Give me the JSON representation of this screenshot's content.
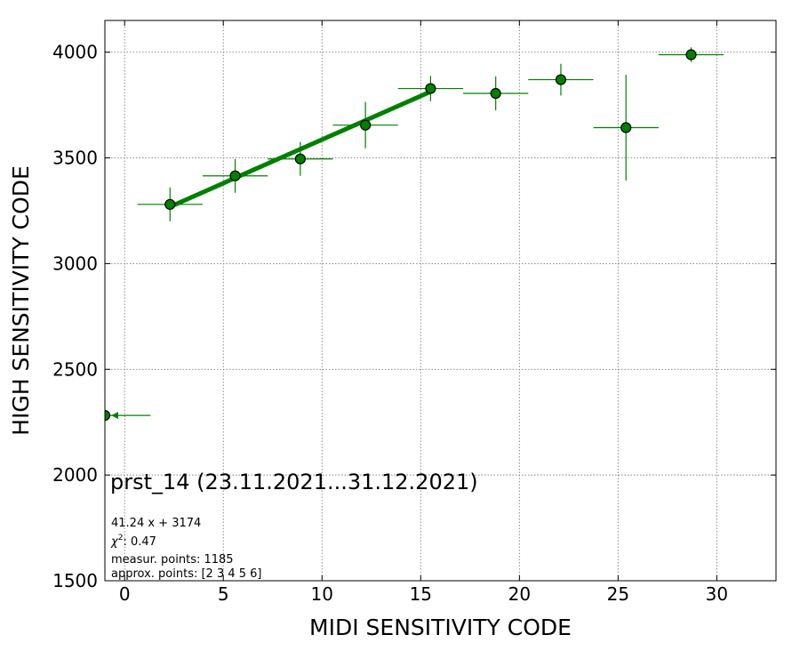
{
  "chart_data": {
    "type": "scatter",
    "xlabel": "MIDI SENSITIVITY CODE",
    "ylabel": "HIGH SENSITIVITY CODE",
    "xlim": [
      -1,
      33
    ],
    "ylim": [
      1500,
      4150
    ],
    "x_ticks": [
      0,
      5,
      10,
      15,
      20,
      25,
      30
    ],
    "y_ticks": [
      1500,
      2000,
      2500,
      3000,
      3500,
      4000
    ],
    "grid": true,
    "colors": {
      "marker": "#008000",
      "marker_edge": "#000000",
      "fit_line": "#008000",
      "grid": "#808080"
    },
    "points": [
      {
        "x": -1.0,
        "y": 2282,
        "xerr": 0.7,
        "yerr": 0,
        "arrow": "left"
      },
      {
        "x": 2.3,
        "y": 3280,
        "xerr": 1.65,
        "yerr": 80
      },
      {
        "x": 5.6,
        "y": 3415,
        "xerr": 1.65,
        "yerr": 80
      },
      {
        "x": 8.9,
        "y": 3495,
        "xerr": 1.65,
        "yerr": 80
      },
      {
        "x": 12.2,
        "y": 3655,
        "xerr": 1.65,
        "yerr": 110
      },
      {
        "x": 15.5,
        "y": 3828,
        "xerr": 1.65,
        "yerr": 60
      },
      {
        "x": 18.8,
        "y": 3805,
        "xerr": 1.65,
        "yerr": 80
      },
      {
        "x": 22.1,
        "y": 3870,
        "xerr": 1.65,
        "yerr": 75
      },
      {
        "x": 25.4,
        "y": 3643,
        "xerr": 1.65,
        "yerr": 250
      },
      {
        "x": 28.7,
        "y": 3988,
        "xerr": 1.65,
        "yerr": 35
      }
    ],
    "fit": {
      "slope": 41.24,
      "intercept": 3174,
      "x_range": [
        2.3,
        15.5
      ]
    },
    "annotations": {
      "title": "prst_14 (23.11.2021...31.12.2021)",
      "equation": "41.24 x + 3174",
      "chi2_symbol": "χ",
      "chi2_exp": "2",
      "chi2_value": ": 0.47",
      "measur_points": "measur. points: 1185",
      "approx_points": "approx. points: [2 3 4 5 6]"
    }
  }
}
